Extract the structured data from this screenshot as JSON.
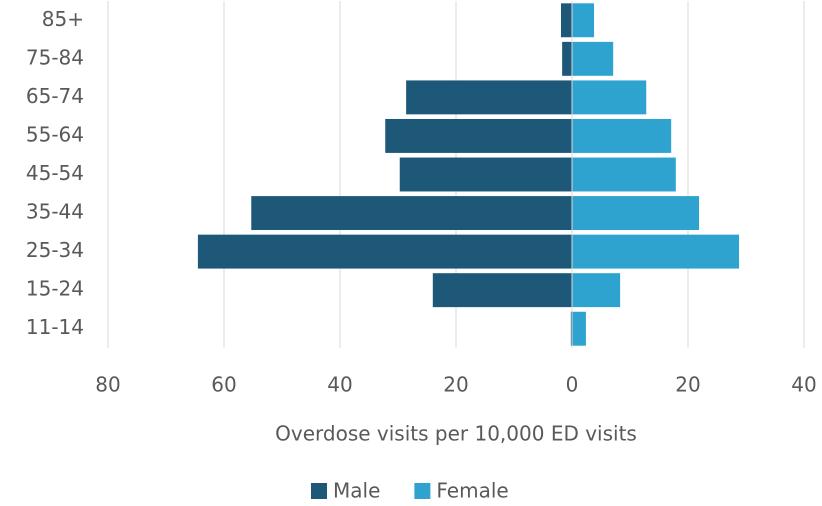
{
  "chart_data": {
    "type": "bar",
    "orientation": "horizontal",
    "stacked": false,
    "xlabel": "Overdose visits per 10,000 ED visits",
    "categories": [
      "85+",
      "75-84",
      "65-74",
      "55-64",
      "45-54",
      "35-44",
      "25-34",
      "15-24",
      "11-14"
    ],
    "series": [
      {
        "name": "Male",
        "color": "#1d5878",
        "values": [
          -1.9,
          -1.7,
          -28.6,
          -32.2,
          -29.7,
          -55.3,
          -64.5,
          -24,
          -0.2
        ]
      },
      {
        "name": "Female",
        "color": "#2ea3d0",
        "values": [
          3.8,
          7.1,
          12.8,
          17.1,
          17.9,
          21.9,
          28.8,
          8.3,
          2.4
        ]
      }
    ],
    "xlim": [
      -80,
      40
    ],
    "xticks": [
      {
        "value": -80,
        "label": "80"
      },
      {
        "value": -60,
        "label": "60"
      },
      {
        "value": -40,
        "label": "40"
      },
      {
        "value": -20,
        "label": "20"
      },
      0,
      20,
      40
    ],
    "grid": true,
    "legend": "bottom"
  }
}
